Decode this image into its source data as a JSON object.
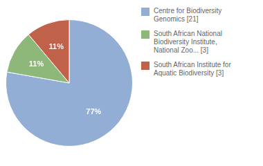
{
  "chart_data": {
    "type": "pie",
    "categories": [
      "Centre for Biodiversity\nGenomics [21]",
      "South African National\nBiodiversity Institute,\nNational Zoo... [3]",
      "South African Institute for\nAquatic Biodiversity [3]"
    ],
    "values": [
      77,
      11,
      11
    ],
    "value_labels": [
      "77%",
      "11%",
      "11%"
    ],
    "data_labels": true,
    "colors": [
      "#92aed4",
      "#8db87a",
      "#c0614a"
    ],
    "legend": "right"
  }
}
